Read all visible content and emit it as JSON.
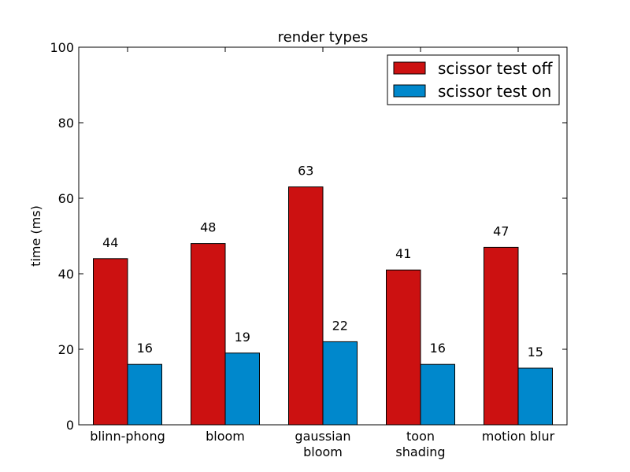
{
  "chart_data": {
    "type": "bar",
    "title": "render types",
    "xlabel": "",
    "ylabel": "time (ms)",
    "ylim": [
      0,
      100
    ],
    "yticks": [
      0,
      20,
      40,
      60,
      80,
      100
    ],
    "categories": [
      [
        "blinn-phong"
      ],
      [
        "bloom"
      ],
      [
        "gaussian",
        "bloom"
      ],
      [
        "toon",
        "shading"
      ],
      [
        "motion blur"
      ]
    ],
    "series": [
      {
        "name": "scissor test off",
        "color": "#cc1111",
        "values": [
          44,
          48,
          63,
          41,
          47
        ]
      },
      {
        "name": "scissor test on",
        "color": "#0088cc",
        "values": [
          16,
          19,
          22,
          16,
          15
        ]
      }
    ],
    "legend_position": "top-right",
    "grid": false
  }
}
